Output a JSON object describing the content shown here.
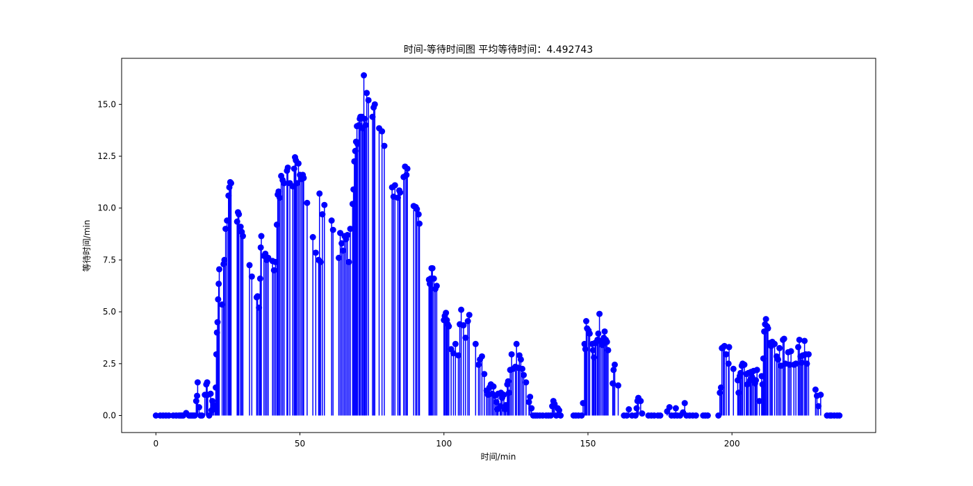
{
  "chart_data": {
    "type": "stem",
    "title": "时间-等待时间图 平均等待时间：4.492743",
    "xlabel": "时间/min",
    "ylabel": "等待时间/min",
    "xlim": [
      -11.9,
      249.9
    ],
    "ylim": [
      -0.82,
      17.22
    ],
    "xticks": [
      0,
      50,
      100,
      150,
      200
    ],
    "yticks": [
      0.0,
      2.5,
      5.0,
      7.5,
      10.0,
      12.5,
      15.0
    ],
    "ytick_labels": [
      "0.0",
      "2.5",
      "5.0",
      "7.5",
      "10.0",
      "12.5",
      "15.0"
    ],
    "grid": false,
    "legend": "none",
    "color": "#0000ff",
    "points": [
      [
        0,
        0
      ],
      [
        1.5,
        0
      ],
      [
        2.5,
        0
      ],
      [
        3.5,
        0
      ],
      [
        4.5,
        0
      ],
      [
        6,
        0
      ],
      [
        7,
        0
      ],
      [
        8,
        0
      ],
      [
        8.5,
        0
      ],
      [
        9,
        0
      ],
      [
        9.5,
        0
      ],
      [
        10.5,
        0.12
      ],
      [
        11.5,
        0
      ],
      [
        12,
        0
      ],
      [
        12.5,
        0
      ],
      [
        13,
        0
      ],
      [
        13.5,
        0
      ],
      [
        14,
        0.7
      ],
      [
        14.3,
        0.95
      ],
      [
        14.5,
        1.6
      ],
      [
        15,
        0.4
      ],
      [
        15.5,
        0
      ],
      [
        16,
        0
      ],
      [
        17,
        1.0
      ],
      [
        17.5,
        1.5
      ],
      [
        17.8,
        1.6
      ],
      [
        18,
        1.0
      ],
      [
        18.5,
        0
      ],
      [
        19,
        1.05
      ],
      [
        19.3,
        0.25
      ],
      [
        19.6,
        0.7
      ],
      [
        20,
        0.5
      ],
      [
        20.5,
        0.3
      ],
      [
        20.8,
        1.35
      ],
      [
        21,
        2.95
      ],
      [
        21.2,
        4.0
      ],
      [
        21.4,
        4.5
      ],
      [
        21.6,
        5.6
      ],
      [
        21.8,
        6.35
      ],
      [
        22,
        7.05
      ],
      [
        23,
        5.35
      ],
      [
        23.5,
        7.3
      ],
      [
        23.8,
        7.5
      ],
      [
        24.2,
        9.0
      ],
      [
        24.7,
        9.4
      ],
      [
        25.2,
        10.6
      ],
      [
        25.5,
        11.0
      ],
      [
        25.8,
        11.25
      ],
      [
        26.1,
        11.2
      ],
      [
        28.2,
        9.35
      ],
      [
        28.5,
        9.8
      ],
      [
        28.8,
        9.7
      ],
      [
        29.4,
        9.1
      ],
      [
        29.8,
        8.85
      ],
      [
        30.2,
        8.65
      ],
      [
        32.5,
        7.25
      ],
      [
        33.3,
        6.7
      ],
      [
        35,
        5.7
      ],
      [
        35.3,
        5.75
      ],
      [
        35.8,
        5.2
      ],
      [
        36.2,
        6.6
      ],
      [
        36.4,
        8.1
      ],
      [
        36.6,
        8.65
      ],
      [
        37.5,
        7.7
      ],
      [
        38,
        7.8
      ],
      [
        38.5,
        7.5
      ],
      [
        39,
        7.6
      ],
      [
        40.5,
        7.45
      ],
      [
        41,
        7.0
      ],
      [
        41.5,
        7.4
      ],
      [
        42,
        9.2
      ],
      [
        42.3,
        10.65
      ],
      [
        42.6,
        10.8
      ],
      [
        43,
        10.5
      ],
      [
        43.5,
        11.55
      ],
      [
        44,
        11.35
      ],
      [
        44.5,
        11.2
      ],
      [
        45.5,
        11.8
      ],
      [
        45.8,
        11.95
      ],
      [
        46.5,
        11.2
      ],
      [
        47.5,
        11.05
      ],
      [
        48,
        11.9
      ],
      [
        48.3,
        12.45
      ],
      [
        48.6,
        12.3
      ],
      [
        49,
        11.2
      ],
      [
        49.5,
        12.15
      ],
      [
        50,
        11.6
      ],
      [
        50.5,
        11.4
      ],
      [
        51,
        11.6
      ],
      [
        51.3,
        11.45
      ],
      [
        52.5,
        10.25
      ],
      [
        54.5,
        8.6
      ],
      [
        55.5,
        7.85
      ],
      [
        56.5,
        7.5
      ],
      [
        56.8,
        10.7
      ],
      [
        57.2,
        7.4
      ],
      [
        57.8,
        9.7
      ],
      [
        58.5,
        10.15
      ],
      [
        61,
        9.4
      ],
      [
        61.5,
        8.95
      ],
      [
        63.5,
        7.6
      ],
      [
        64,
        8.8
      ],
      [
        64.5,
        8.3
      ],
      [
        65,
        7.95
      ],
      [
        65.5,
        8.65
      ],
      [
        66,
        8.5
      ],
      [
        66.5,
        8.7
      ],
      [
        67,
        7.4
      ],
      [
        67.5,
        9.0
      ],
      [
        68.3,
        10.2
      ],
      [
        68.6,
        10.9
      ],
      [
        68.9,
        12.25
      ],
      [
        69.2,
        12.75
      ],
      [
        69.5,
        13.2
      ],
      [
        69.8,
        13.95
      ],
      [
        70,
        13.1
      ],
      [
        70.5,
        14.0
      ],
      [
        70.8,
        14.3
      ],
      [
        71,
        14.4
      ],
      [
        71.5,
        14.4
      ],
      [
        71.8,
        13.85
      ],
      [
        72.2,
        16.4
      ],
      [
        72.5,
        14.3
      ],
      [
        72.8,
        14.0
      ],
      [
        73.2,
        15.55
      ],
      [
        73.8,
        15.2
      ],
      [
        75.2,
        14.4
      ],
      [
        75.6,
        14.85
      ],
      [
        76,
        15.0
      ],
      [
        77.5,
        13.85
      ],
      [
        78.5,
        13.7
      ],
      [
        79.3,
        13.0
      ],
      [
        82,
        11.0
      ],
      [
        82.5,
        10.55
      ],
      [
        83,
        11.1
      ],
      [
        84,
        10.5
      ],
      [
        84.5,
        10.85
      ],
      [
        84.8,
        10.75
      ],
      [
        86,
        11.5
      ],
      [
        86.5,
        12.0
      ],
      [
        87,
        11.6
      ],
      [
        87.3,
        11.9
      ],
      [
        89.5,
        10.1
      ],
      [
        90.2,
        10.05
      ],
      [
        90.6,
        9.95
      ],
      [
        91.2,
        9.7
      ],
      [
        91.5,
        9.25
      ],
      [
        94.8,
        6.55
      ],
      [
        95.1,
        6.35
      ],
      [
        95.4,
        6.6
      ],
      [
        95.7,
        7.1
      ],
      [
        96,
        7.1
      ],
      [
        96.5,
        6.6
      ],
      [
        97,
        6.1
      ],
      [
        97.5,
        6.25
      ],
      [
        100,
        4.6
      ],
      [
        100.3,
        4.8
      ],
      [
        100.7,
        4.95
      ],
      [
        101,
        4.6
      ],
      [
        101.3,
        4.4
      ],
      [
        101.7,
        4.3
      ],
      [
        102.5,
        3.2
      ],
      [
        103.3,
        3.0
      ],
      [
        104,
        3.45
      ],
      [
        105,
        2.9
      ],
      [
        105.5,
        4.4
      ],
      [
        106,
        5.1
      ],
      [
        106.8,
        4.35
      ],
      [
        107.5,
        3.75
      ],
      [
        108.3,
        4.55
      ],
      [
        108.8,
        4.85
      ],
      [
        111,
        3.45
      ],
      [
        112,
        2.45
      ],
      [
        112.5,
        2.7
      ],
      [
        113.2,
        2.85
      ],
      [
        114,
        2.0
      ],
      [
        114.8,
        1.2
      ],
      [
        115.3,
        1.0
      ],
      [
        115.8,
        1.35
      ],
      [
        116.3,
        1.5
      ],
      [
        116.8,
        1.05
      ],
      [
        117.2,
        1.4
      ],
      [
        117.7,
        0.95
      ],
      [
        118.2,
        0.65
      ],
      [
        118.5,
        0.3
      ],
      [
        118.8,
        1.05
      ],
      [
        119.5,
        0.45
      ],
      [
        119.8,
        1.1
      ],
      [
        120.2,
        0.85
      ],
      [
        120.8,
        1.0
      ],
      [
        121.2,
        0.3
      ],
      [
        121.5,
        0.5
      ],
      [
        122,
        1.5
      ],
      [
        122.3,
        1.65
      ],
      [
        122.6,
        1.1
      ],
      [
        123,
        2.2
      ],
      [
        123.5,
        2.95
      ],
      [
        124,
        2.25
      ],
      [
        124.8,
        2.35
      ],
      [
        125.2,
        3.45
      ],
      [
        125.8,
        2.3
      ],
      [
        126.2,
        2.9
      ],
      [
        126.7,
        2.7
      ],
      [
        127.2,
        2.25
      ],
      [
        127.7,
        1.95
      ],
      [
        128.5,
        1.6
      ],
      [
        129.5,
        0.65
      ],
      [
        129.9,
        0.9
      ],
      [
        130.4,
        0.35
      ],
      [
        131,
        0
      ],
      [
        131.7,
        0
      ],
      [
        132.4,
        0
      ],
      [
        133.3,
        0
      ],
      [
        134.3,
        0
      ],
      [
        135.5,
        0
      ],
      [
        136.3,
        0
      ],
      [
        137.1,
        0
      ],
      [
        137.6,
        0.45
      ],
      [
        138,
        0.7
      ],
      [
        138.4,
        0.55
      ],
      [
        139,
        0
      ],
      [
        139.5,
        0.35
      ],
      [
        140,
        0.25
      ],
      [
        140.5,
        0
      ],
      [
        145,
        0
      ],
      [
        145.8,
        0
      ],
      [
        146.7,
        0
      ],
      [
        147.8,
        0
      ],
      [
        148.3,
        0.6
      ],
      [
        148.8,
        3.45
      ],
      [
        149.1,
        3.2
      ],
      [
        149.4,
        4.55
      ],
      [
        149.7,
        4.2
      ],
      [
        150.2,
        4.1
      ],
      [
        150.6,
        3.95
      ],
      [
        151.5,
        3.45
      ],
      [
        151.8,
        3.15
      ],
      [
        152.1,
        2.8
      ],
      [
        152.5,
        3.5
      ],
      [
        152.8,
        3.5
      ],
      [
        153.3,
        3.65
      ],
      [
        153.6,
        3.95
      ],
      [
        154,
        4.9
      ],
      [
        154.5,
        3.6
      ],
      [
        155,
        3.4
      ],
      [
        155.5,
        3.75
      ],
      [
        155.8,
        4.05
      ],
      [
        156.2,
        3.65
      ],
      [
        156.6,
        3.55
      ],
      [
        157,
        3.15
      ],
      [
        158.6,
        1.55
      ],
      [
        158.9,
        2.2
      ],
      [
        159.3,
        2.45
      ],
      [
        160.5,
        1.45
      ],
      [
        162.5,
        0
      ],
      [
        163.5,
        0
      ],
      [
        164.2,
        0.3
      ],
      [
        165.3,
        0
      ],
      [
        166.5,
        0
      ],
      [
        166.9,
        0.35
      ],
      [
        167.2,
        0.7
      ],
      [
        167.5,
        0.85
      ],
      [
        168.3,
        0.7
      ],
      [
        168.8,
        0.1
      ],
      [
        171,
        0
      ],
      [
        172,
        0
      ],
      [
        173,
        0
      ],
      [
        174.3,
        0
      ],
      [
        175.1,
        0
      ],
      [
        177.5,
        0.2
      ],
      [
        178.3,
        0.4
      ],
      [
        179,
        0
      ],
      [
        180,
        0
      ],
      [
        180.5,
        0.35
      ],
      [
        181,
        0
      ],
      [
        182,
        0
      ],
      [
        183,
        0.15
      ],
      [
        183.6,
        0.6
      ],
      [
        184.2,
        0
      ],
      [
        185.3,
        0
      ],
      [
        186.4,
        0
      ],
      [
        187.5,
        0
      ],
      [
        190,
        0
      ],
      [
        190.7,
        0
      ],
      [
        191.6,
        0
      ],
      [
        195.3,
        0
      ],
      [
        195.8,
        1.1
      ],
      [
        196.2,
        1.35
      ],
      [
        196.5,
        3.25
      ],
      [
        197,
        3.3
      ],
      [
        197.4,
        3.35
      ],
      [
        198,
        2.95
      ],
      [
        198.8,
        2.5
      ],
      [
        199,
        3.3
      ],
      [
        200.5,
        2.25
      ],
      [
        202,
        1.7
      ],
      [
        202.3,
        1.1
      ],
      [
        202.7,
        1.9
      ],
      [
        203,
        2.05
      ],
      [
        203.4,
        2.4
      ],
      [
        203.7,
        2.5
      ],
      [
        204.3,
        2.45
      ],
      [
        205,
        2.0
      ],
      [
        205.3,
        1.5
      ],
      [
        205.7,
        2.05
      ],
      [
        206.3,
        1.7
      ],
      [
        206.6,
        2.1
      ],
      [
        207,
        1.85
      ],
      [
        207.5,
        2.15
      ],
      [
        208,
        1.55
      ],
      [
        208.3,
        1.7
      ],
      [
        208.7,
        2.2
      ],
      [
        209.5,
        0.7
      ],
      [
        210.3,
        1.9
      ],
      [
        210.6,
        1.5
      ],
      [
        210.9,
        2.75
      ],
      [
        211.2,
        4.05
      ],
      [
        211.5,
        4.4
      ],
      [
        211.8,
        4.65
      ],
      [
        212.2,
        4.3
      ],
      [
        212.5,
        4.2
      ],
      [
        213.2,
        3.5
      ],
      [
        213.6,
        3.35
      ],
      [
        214,
        3.55
      ],
      [
        214.8,
        3.45
      ],
      [
        215.5,
        2.85
      ],
      [
        216,
        2.7
      ],
      [
        216.5,
        3.25
      ],
      [
        217,
        2.4
      ],
      [
        217.7,
        3.65
      ],
      [
        218.1,
        3.7
      ],
      [
        218.5,
        2.5
      ],
      [
        219.5,
        3.05
      ],
      [
        220,
        2.45
      ],
      [
        220.5,
        3.1
      ],
      [
        221.5,
        2.45
      ],
      [
        222.2,
        2.5
      ],
      [
        223,
        3.3
      ],
      [
        223.4,
        3.65
      ],
      [
        223.8,
        2.85
      ],
      [
        224.2,
        2.55
      ],
      [
        224.6,
        2.9
      ],
      [
        225.2,
        3.6
      ],
      [
        225.6,
        2.95
      ],
      [
        226,
        2.5
      ],
      [
        226.6,
        2.95
      ],
      [
        229,
        1.25
      ],
      [
        229.5,
        0.95
      ],
      [
        230,
        0.45
      ],
      [
        230.8,
        1.0
      ],
      [
        233,
        0
      ],
      [
        234,
        0
      ],
      [
        234.5,
        0
      ],
      [
        235.5,
        0
      ],
      [
        236.5,
        0
      ],
      [
        237.3,
        0
      ]
    ]
  }
}
